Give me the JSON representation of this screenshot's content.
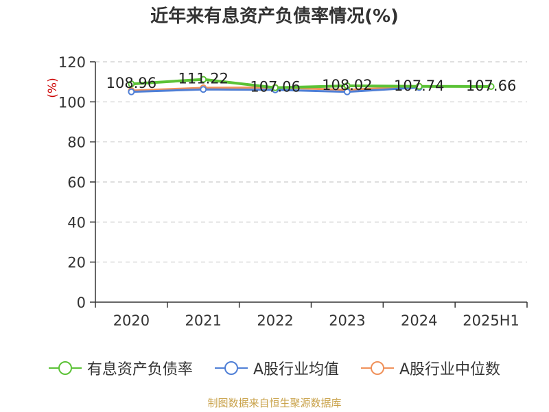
{
  "chart_data": {
    "type": "line",
    "title": "近年来有息资产负债率情况(%)",
    "ylabel": "(%)",
    "xlabel": "",
    "categories": [
      "2020",
      "2021",
      "2022",
      "2023",
      "2024",
      "2025H1"
    ],
    "ylim": [
      0,
      120
    ],
    "yticks": [
      0,
      20,
      40,
      60,
      80,
      100,
      120
    ],
    "grid": true,
    "legend_position": "bottom",
    "series": [
      {
        "name": "有息资产负债率",
        "color": "#5bc236",
        "values": [
          108.96,
          111.22,
          107.06,
          108.02,
          107.74,
          107.66
        ],
        "labels": [
          "108.96",
          "111.22",
          "107.06",
          "108.02",
          "107.74",
          "107.66"
        ]
      },
      {
        "name": "A股行业均值",
        "color": "#4f7fd6",
        "values": [
          105.0,
          106.2,
          106.0,
          105.0,
          107.2,
          null
        ],
        "labels": []
      },
      {
        "name": "A股行业中位数",
        "color": "#f0915a",
        "values": [
          105.6,
          107.0,
          107.2,
          106.0,
          107.8,
          null
        ],
        "labels": []
      }
    ]
  },
  "source_text": "制图数据来自恒生聚源数据库"
}
